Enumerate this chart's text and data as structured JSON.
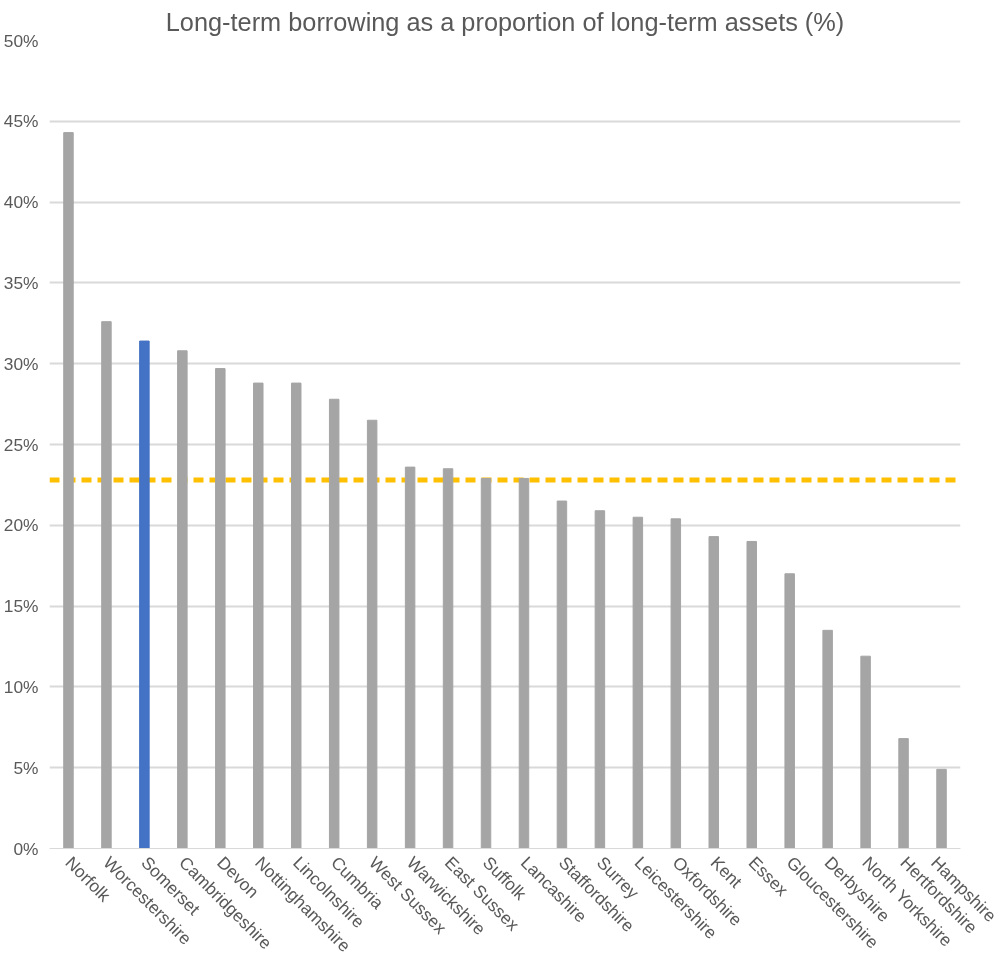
{
  "chart_data": {
    "type": "bar",
    "title": "Long-term borrowing as a proportion of long-term assets (%)",
    "categories": [
      "Norfolk",
      "Worcestershire",
      "Somerset",
      "Cambridgeshire",
      "Devon",
      "Nottinghamshire",
      "Lincolnshire",
      "Cumbria",
      "West Sussex",
      "Warwickshire",
      "East Sussex",
      "Suffolk",
      "Lancashire",
      "Staffordshire",
      "Surrey",
      "Leicestershire",
      "Oxfordshire",
      "Kent",
      "Essex",
      "Gloucestershire",
      "Derbyshire",
      "North Yorkshire",
      "Hertfordshire",
      "Hampshire"
    ],
    "values": [
      44.3,
      32.6,
      31.4,
      30.8,
      29.7,
      28.8,
      28.8,
      27.8,
      26.5,
      23.6,
      23.5,
      22.9,
      22.9,
      21.5,
      20.9,
      20.5,
      20.4,
      19.3,
      19.0,
      17.0,
      13.5,
      11.9,
      6.8,
      4.9
    ],
    "colors": [
      "#a5a5a5",
      "#a5a5a5",
      "#4472c4",
      "#a5a5a5",
      "#a5a5a5",
      "#a5a5a5",
      "#a5a5a5",
      "#a5a5a5",
      "#a5a5a5",
      "#a5a5a5",
      "#a5a5a5",
      "#a5a5a5",
      "#a5a5a5",
      "#a5a5a5",
      "#a5a5a5",
      "#a5a5a5",
      "#a5a5a5",
      "#a5a5a5",
      "#a5a5a5",
      "#a5a5a5",
      "#a5a5a5",
      "#a5a5a5",
      "#a5a5a5",
      "#a5a5a5"
    ],
    "ylim": [
      0,
      50
    ],
    "yticks": [
      {
        "value": 0,
        "label": "0%"
      },
      {
        "value": 5,
        "label": "5%"
      },
      {
        "value": 10,
        "label": "10%"
      },
      {
        "value": 15,
        "label": "15%"
      },
      {
        "value": 20,
        "label": "20%"
      },
      {
        "value": 25,
        "label": "25%"
      },
      {
        "value": 30,
        "label": "30%"
      },
      {
        "value": 35,
        "label": "35%"
      },
      {
        "value": 40,
        "label": "40%"
      },
      {
        "value": 45,
        "label": "45%"
      },
      {
        "value": 50,
        "label": "50%"
      }
    ],
    "ref_lines": [
      {
        "axis": "y",
        "value": 22.8,
        "color": "#ffc000",
        "line_style": "dashed"
      }
    ],
    "grid": "y"
  }
}
